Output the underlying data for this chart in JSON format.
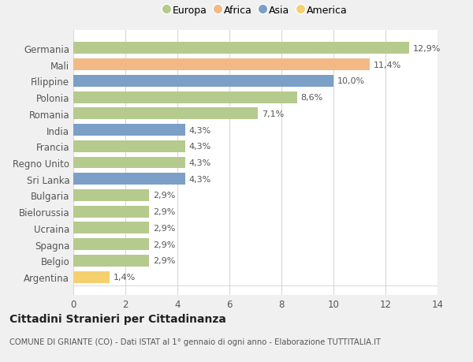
{
  "categories": [
    "Germania",
    "Mali",
    "Filippine",
    "Polonia",
    "Romania",
    "India",
    "Francia",
    "Regno Unito",
    "Sri Lanka",
    "Bulgaria",
    "Bielorussia",
    "Ucraina",
    "Spagna",
    "Belgio",
    "Argentina"
  ],
  "values": [
    12.9,
    11.4,
    10.0,
    8.6,
    7.1,
    4.3,
    4.3,
    4.3,
    4.3,
    2.9,
    2.9,
    2.9,
    2.9,
    2.9,
    1.4
  ],
  "labels": [
    "12,9%",
    "11,4%",
    "10,0%",
    "8,6%",
    "7,1%",
    "4,3%",
    "4,3%",
    "4,3%",
    "4,3%",
    "2,9%",
    "2,9%",
    "2,9%",
    "2,9%",
    "2,9%",
    "1,4%"
  ],
  "continent": [
    "Europa",
    "Africa",
    "Asia",
    "Europa",
    "Europa",
    "Asia",
    "Europa",
    "Europa",
    "Asia",
    "Europa",
    "Europa",
    "Europa",
    "Europa",
    "Europa",
    "America"
  ],
  "colors": {
    "Europa": "#b5ca8d",
    "Africa": "#f2b987",
    "Asia": "#7b9fc7",
    "America": "#f5d06e"
  },
  "legend_order": [
    "Europa",
    "Africa",
    "Asia",
    "America"
  ],
  "background_color": "#f0f0f0",
  "plot_bg_color": "#ffffff",
  "title": "Cittadini Stranieri per Cittadinanza",
  "subtitle": "COMUNE DI GRIANTE (CO) - Dati ISTAT al 1° gennaio di ogni anno - Elaborazione TUTTITALIA.IT",
  "xlim": [
    0,
    14
  ],
  "xticks": [
    0,
    2,
    4,
    6,
    8,
    10,
    12,
    14
  ],
  "bar_height": 0.72,
  "label_fontsize": 8.0,
  "tick_fontsize": 8.5
}
